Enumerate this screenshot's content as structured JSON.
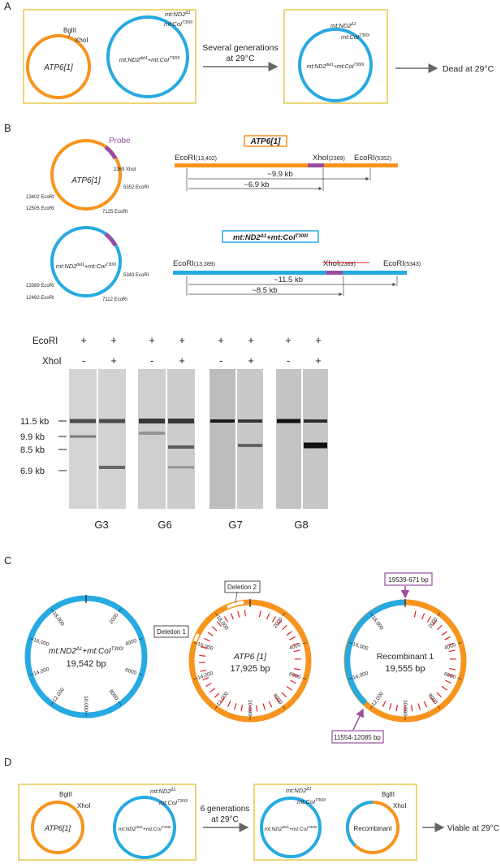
{
  "colors": {
    "orange": "#f7941d",
    "blue": "#27aae1",
    "purple": "#9b4d9e",
    "box": "#e5c84a",
    "red": "#e31e24",
    "gray": "#666666"
  },
  "panelA": {
    "label": "A",
    "bgl": "BglII",
    "xho": "XhoI",
    "atp6": "ATP6[1]",
    "nd2": "mt:ND2",
    "nd2sup": "Δ1",
    "coi": "mt:CoI",
    "coisup": "T300I",
    "combo_a": "mt:ND2",
    "combo_a_sup": "del1",
    "combo_b": "+mt:CoI",
    "combo_b_sup": "T300I",
    "arrow_l1": "Several generations",
    "arrow_l2": "at 29°C",
    "dead": "Dead at 29°C"
  },
  "panelB": {
    "label": "B",
    "probe": "Probe",
    "atp_circle": "ATP6[1]",
    "atp_sites": [
      "2369 XhoI",
      "5352 EcoRI",
      "7125 EcoRI",
      "12505 EcoRI",
      "13402 EcoRI"
    ],
    "combo_title_a": "mt:ND2",
    "combo_title_a_sup": "Δ1",
    "combo_title_b": "+mt:CoI",
    "combo_title_b_sup": "T300I",
    "combo_sites": [
      "5343 EcoRI",
      "7112 EcoRI",
      "12492 EcoRI",
      "13389 EcoRI"
    ],
    "atp_title": "ATP6[1]",
    "atp_map": {
      "left": "EcoRI",
      "left_pos": "(13,402)",
      "xho": "XhoI",
      "xho_pos": "(2369)",
      "right": "EcoRI",
      "right_pos": "(5352)",
      "long": "~9.9 kb",
      "short": "~6.9 kb"
    },
    "combo_map": {
      "left": "EcoRI",
      "left_pos": "(13,389)",
      "xho": "XhoI",
      "xho_pos": "(2369)",
      "right": "EcoRI",
      "right_pos": "(5343)",
      "long": "~11.5 kb",
      "short": "~8.5 kb"
    },
    "ecori": "EcoRI",
    "xhoi": "XhoI",
    "plus": "+",
    "minus": "-",
    "sizes": [
      "11.5 kb",
      "9.9 kb",
      "8.5 kb",
      "6.9 kb"
    ],
    "gels": [
      "G3",
      "G6",
      "G7",
      "G8"
    ]
  },
  "panelC": {
    "label": "C",
    "c1_a": "mt:ND2",
    "c1_a_sup": "Δ1",
    "c1_b": "+mt:CoI",
    "c1_b_sup": "T300I",
    "c1_bp": "19,542 bp",
    "c2_name": "ATP6 [1]",
    "c2_bp": "17,925 bp",
    "c3_name": "Recombinant 1",
    "c3_bp": "19,555 bp",
    "ticks": [
      "2000",
      "4000",
      "6000",
      "8000",
      "10,000",
      "12,000",
      "14,000",
      "16,000",
      "18,000"
    ],
    "del1": "Deletion 1",
    "del2": "Deletion 2",
    "rec_top": "19539-671 bp",
    "rec_bottom": "11554-12085 bp"
  },
  "panelD": {
    "label": "D",
    "bgl": "BglII",
    "xho": "XhoI",
    "atp6": "ATP6[1]",
    "nd2": "mt:ND2",
    "nd2sup": "Δ1",
    "coi": "mt:CoI",
    "coisup": "T300I",
    "combo_a": "mt:ND2",
    "combo_a_sup": "del1",
    "combo_b": "+mt:CoI",
    "combo_b_sup": "T300I",
    "arrow_l1": "6 generations",
    "arrow_l2": "at 29°C",
    "recomb": "Recombinant",
    "viable": "Viable at 29°C"
  }
}
